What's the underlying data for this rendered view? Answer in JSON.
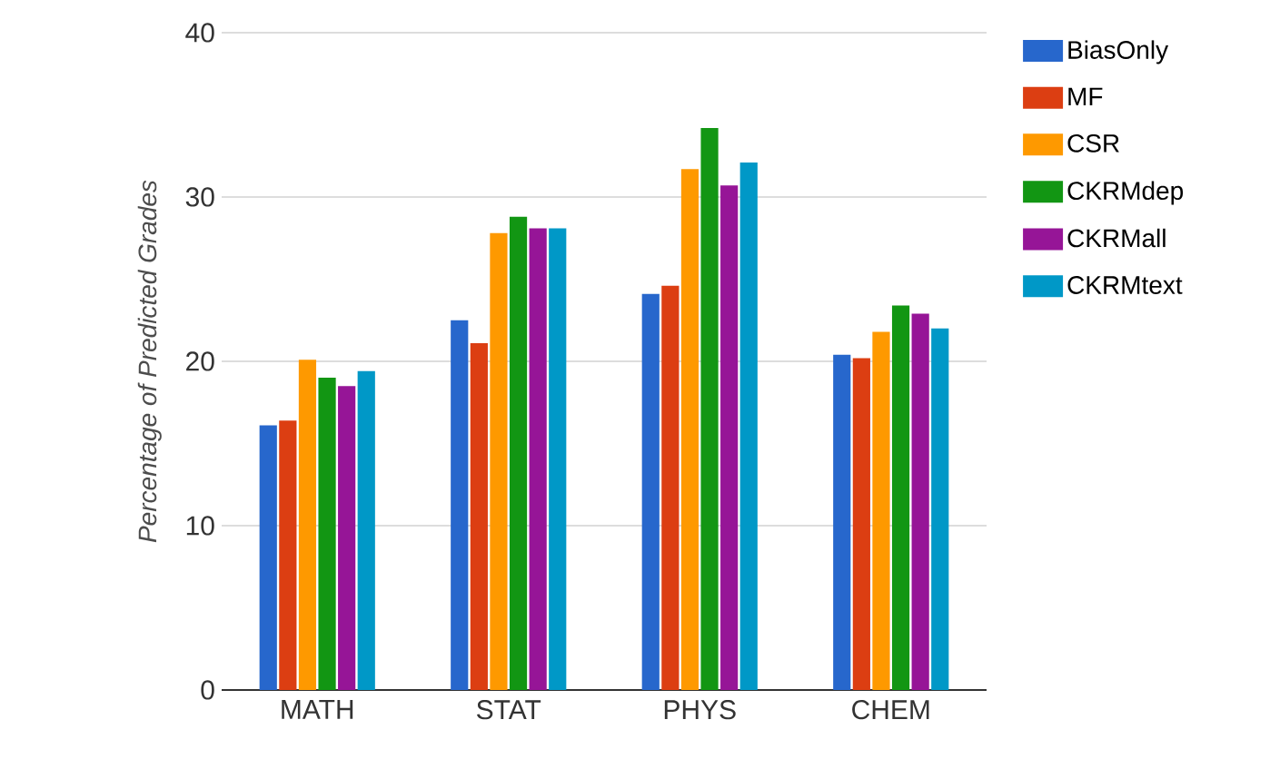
{
  "chart_data": {
    "type": "bar",
    "ylabel": "Percentage of Predicted Grades",
    "categories": [
      "MATH",
      "STAT",
      "PHYS",
      "CHEM"
    ],
    "series": [
      {
        "name": "BiasOnly",
        "color": "#2767cc",
        "values": [
          16.1,
          22.5,
          24.1,
          20.4
        ]
      },
      {
        "name": "MF",
        "color": "#dc3e12",
        "values": [
          16.4,
          21.1,
          24.6,
          20.2
        ]
      },
      {
        "name": "CSR",
        "color": "#fe9900",
        "values": [
          20.1,
          27.8,
          31.7,
          21.8
        ]
      },
      {
        "name": "CKRMdep",
        "color": "#129613",
        "values": [
          19.0,
          28.8,
          34.2,
          23.4
        ]
      },
      {
        "name": "CKRMall",
        "color": "#961597",
        "values": [
          18.5,
          28.1,
          30.7,
          22.9
        ]
      },
      {
        "name": "CKRMtext",
        "color": "#0098c7",
        "values": [
          19.4,
          28.1,
          32.1,
          22.0
        ]
      }
    ],
    "ylim": [
      0,
      40
    ],
    "yticks": [
      0,
      10,
      20,
      30,
      40
    ],
    "grid": "y",
    "legend": "top right"
  }
}
